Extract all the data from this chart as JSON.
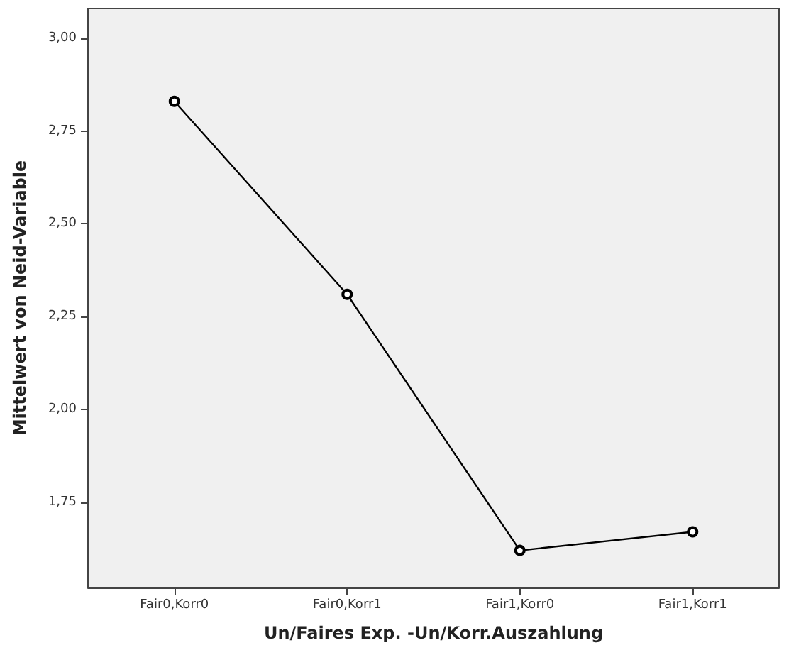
{
  "chart_data": {
    "type": "line",
    "xlabel": "Un/Faires Exp. -Un/Korr.Auszahlung",
    "ylabel": "Mittelwert von Neid-Variable",
    "categories": [
      "Fair0,Korr0",
      "Fair0,Korr1",
      "Fair1,Korr0",
      "Fair1,Korr1"
    ],
    "series": [
      {
        "color": "#000000",
        "values": [
          2.83,
          2.31,
          1.62,
          1.67
        ]
      }
    ],
    "ylim": [
      1.52,
      3.08
    ],
    "yticks": [
      {
        "value": 1.75,
        "label": "1,75"
      },
      {
        "value": 2,
        "label": "2,00"
      },
      {
        "value": 2.25,
        "label": "2,25"
      },
      {
        "value": 2.5,
        "label": "2,50"
      },
      {
        "value": 2.75,
        "label": "2,75"
      },
      {
        "value": 3,
        "label": "3,00"
      }
    ],
    "grid": false,
    "marker": "circle",
    "line_style": "solid"
  }
}
